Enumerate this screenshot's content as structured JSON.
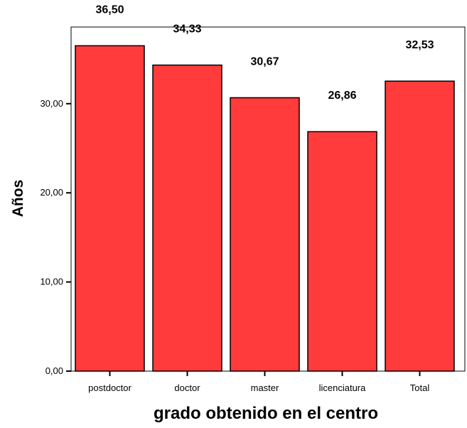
{
  "chart_data": {
    "type": "bar",
    "categories": [
      "postdoctor",
      "doctor",
      "master",
      "licenciatura",
      "Total"
    ],
    "values": [
      36.5,
      34.33,
      30.67,
      26.86,
      32.53
    ],
    "data_labels": [
      "36,50",
      "34,33",
      "30,67",
      "26,86",
      "32,53"
    ],
    "xlabel": "grado obtenido en el centro",
    "ylabel": "Años",
    "ylim": [
      0,
      38.6
    ],
    "y_ticks": [
      0,
      10,
      20,
      30
    ],
    "y_tick_labels": [
      "0,00",
      "10,00",
      "20,00",
      "30,00"
    ],
    "grid": false,
    "legend": "none",
    "colors": {
      "bar_fill": "#ff3b3b",
      "bar_stroke": "#000000",
      "axis": "#000000"
    }
  }
}
